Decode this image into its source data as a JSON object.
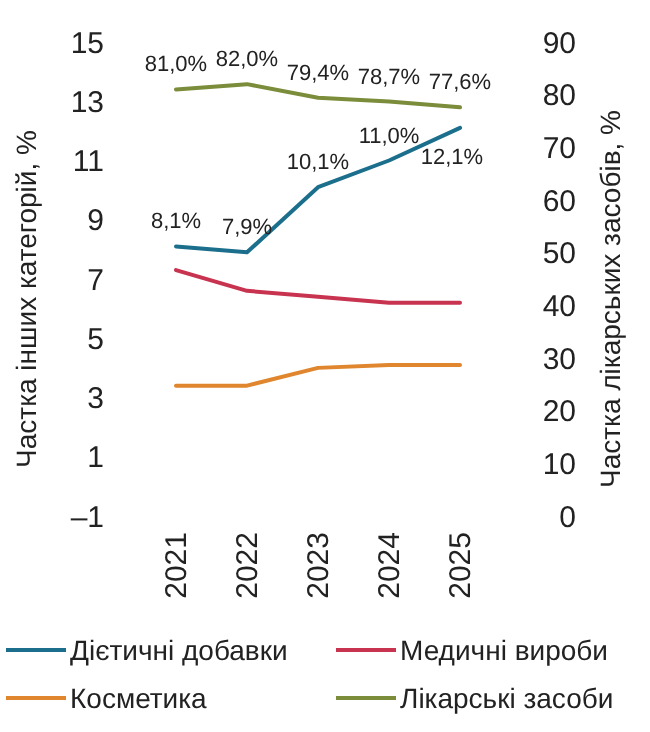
{
  "chart_data": {
    "type": "line",
    "categories": [
      "2021",
      "2022",
      "2023",
      "2024",
      "2025"
    ],
    "ylabel": "Частка інших категорій, %",
    "y2label": "Частка лікарських засобів, %",
    "ylim": [
      -1,
      15
    ],
    "yticks": [
      {
        "value": -1,
        "label": "–1"
      },
      1,
      3,
      5,
      7,
      9,
      11,
      13,
      15
    ],
    "y2lim": [
      0,
      90
    ],
    "y2ticks": [
      0,
      10,
      20,
      30,
      40,
      50,
      60,
      70,
      80,
      90
    ],
    "legend": "bottom",
    "grid": false,
    "marker": "none",
    "series": [
      {
        "name": "Дієтичні добавки",
        "color": "#1b6f8c",
        "values": [
          8.1,
          7.9,
          10.1,
          11.0,
          12.1
        ],
        "value_labels": [
          "8,1%",
          "7,9%",
          "10,1%",
          "11,0%",
          "12,1%"
        ]
      },
      {
        "name": "Медичні вироби",
        "color": "#c8334f",
        "values": [
          7.3,
          6.6,
          6.4,
          6.2,
          6.2
        ]
      },
      {
        "name": "Косметика",
        "color": "#e0862e",
        "values": [
          3.4,
          3.4,
          4.0,
          4.1,
          4.1
        ]
      },
      {
        "name": "Лікарські засоби",
        "color": "#7b8c3a",
        "axis": "y2",
        "values": [
          81.0,
          82.0,
          79.4,
          78.7,
          77.6
        ],
        "value_labels": [
          "81,0%",
          "82,0%",
          "79,4%",
          "78,7%",
          "77,6%"
        ]
      }
    ]
  }
}
